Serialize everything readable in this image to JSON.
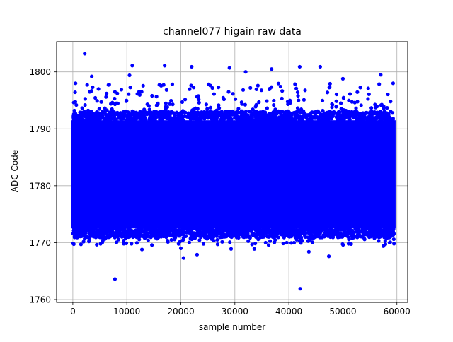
{
  "chart_data": {
    "type": "scatter",
    "title": "channel077 higain raw data",
    "xlabel": "sample number",
    "ylabel": "ADC Code",
    "xlim": [
      -3000,
      62000
    ],
    "ylim": [
      1759.5,
      1805.3
    ],
    "xticks": [
      0,
      10000,
      20000,
      30000,
      40000,
      50000,
      60000
    ],
    "yticks": [
      1760,
      1770,
      1780,
      1790,
      1800
    ],
    "xtick_labels": [
      "0",
      "10000",
      "20000",
      "30000",
      "40000",
      "50000",
      "60000"
    ],
    "ytick_labels": [
      "1760",
      "1770",
      "1780",
      "1790",
      "1800"
    ],
    "grid": true,
    "marker_color": "#0000ff",
    "series_summary": {
      "x_range": [
        0,
        59500
      ],
      "dense_band": [
        1772.5,
        1791.5
      ],
      "sparse_envelope": [
        1769.5,
        1798
      ]
    },
    "outliers": [
      {
        "x": 2200,
        "y": 1803.2
      },
      {
        "x": 7800,
        "y": 1763.6
      },
      {
        "x": 42100,
        "y": 1761.9
      },
      {
        "x": 11000,
        "y": 1801.1
      },
      {
        "x": 17000,
        "y": 1801.1
      },
      {
        "x": 22000,
        "y": 1800.9
      },
      {
        "x": 29000,
        "y": 1800.7
      },
      {
        "x": 36800,
        "y": 1800.5
      },
      {
        "x": 42000,
        "y": 1800.9
      },
      {
        "x": 45800,
        "y": 1800.9
      },
      {
        "x": 32000,
        "y": 1800.0
      },
      {
        "x": 10500,
        "y": 1799.4
      },
      {
        "x": 3500,
        "y": 1799.2
      },
      {
        "x": 57000,
        "y": 1799.5
      },
      {
        "x": 500,
        "y": 1798.0
      },
      {
        "x": 59300,
        "y": 1798.0
      },
      {
        "x": 50000,
        "y": 1798.8
      },
      {
        "x": 20500,
        "y": 1767.3
      },
      {
        "x": 23000,
        "y": 1767.9
      },
      {
        "x": 47400,
        "y": 1767.6
      },
      {
        "x": 43700,
        "y": 1768.4
      },
      {
        "x": 29300,
        "y": 1768.9
      },
      {
        "x": 12800,
        "y": 1768.8
      },
      {
        "x": 33600,
        "y": 1768.9
      },
      {
        "x": 20000,
        "y": 1769.0
      },
      {
        "x": 57500,
        "y": 1769.4
      }
    ]
  }
}
